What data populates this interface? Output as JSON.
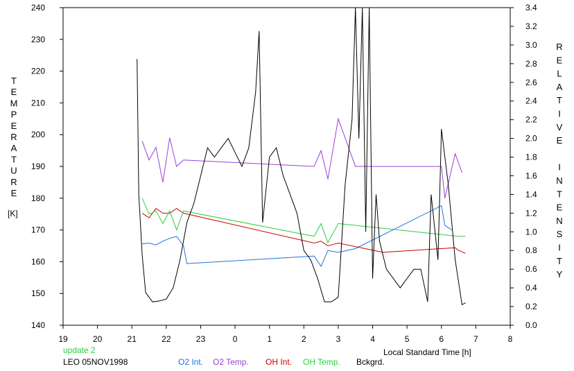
{
  "chart_data": {
    "type": "line",
    "xlabel": "Local Standard Time [h]",
    "ylabel_left": "TEMPERATURE",
    "ylabel_left_unit": "[K]",
    "ylabel_right": "RELATIVE INTENSITY",
    "x_range": [
      19,
      32
    ],
    "x_tick_values": [
      19,
      20,
      21,
      22,
      23,
      24,
      25,
      26,
      27,
      28,
      29,
      30,
      31,
      32
    ],
    "x_tick_labels": [
      "19",
      "20",
      "21",
      "22",
      "23",
      "0",
      "1",
      "2",
      "3",
      "4",
      "5",
      "6",
      "7",
      "8"
    ],
    "y_left_range": [
      140,
      240
    ],
    "y_left_ticks": [
      "140",
      "150",
      "160",
      "170",
      "180",
      "190",
      "200",
      "210",
      "220",
      "230",
      "240"
    ],
    "y_right_range": [
      0.0,
      3.4
    ],
    "y_right_ticks": [
      "0.0",
      "0.2",
      "0.4",
      "0.6",
      "0.8",
      "1.0",
      "1.2",
      "1.4",
      "1.6",
      "1.8",
      "2.0",
      "2.2",
      "2.4",
      "2.6",
      "2.8",
      "3.0",
      "3.2",
      "3.4"
    ],
    "grid": false,
    "series": [
      {
        "name": "O2 Int.",
        "axis": "right",
        "color": "#1a73d9",
        "x": [
          21.3,
          21.5,
          21.7,
          21.9,
          22.1,
          22.3,
          22.5,
          22.6,
          26.3,
          26.5,
          26.7,
          27.0,
          27.5,
          30.0,
          30.1,
          30.3
        ],
        "y": [
          0.87,
          0.88,
          0.86,
          0.9,
          0.93,
          0.95,
          0.85,
          0.66,
          0.74,
          0.63,
          0.8,
          0.78,
          0.82,
          1.28,
          1.07,
          1.02
        ]
      },
      {
        "name": "O2 Temp.",
        "axis": "left",
        "color": "#9b3fd6",
        "x": [
          21.3,
          21.5,
          21.7,
          21.9,
          22.1,
          22.3,
          22.5,
          26.3,
          26.5,
          26.7,
          27.0,
          27.5,
          30.0,
          30.1,
          30.4,
          30.6
        ],
        "y": [
          198,
          192,
          196,
          185,
          199,
          190,
          192,
          190,
          195,
          186,
          205,
          190,
          190,
          180,
          194,
          188
        ]
      },
      {
        "name": "OH Int.",
        "axis": "right",
        "color": "#cc0000",
        "x": [
          21.3,
          21.5,
          21.7,
          21.9,
          22.1,
          22.3,
          22.5,
          26.3,
          26.5,
          26.7,
          27.0,
          28.3,
          30.4,
          30.5,
          30.7
        ],
        "y": [
          1.2,
          1.15,
          1.25,
          1.2,
          1.2,
          1.25,
          1.2,
          0.88,
          0.9,
          0.85,
          0.88,
          0.78,
          0.83,
          0.8,
          0.77
        ]
      },
      {
        "name": "OH Temp.",
        "axis": "left",
        "color": "#2ecc40",
        "x": [
          21.3,
          21.5,
          21.7,
          21.9,
          22.1,
          22.3,
          22.5,
          26.3,
          26.5,
          26.7,
          27.0,
          30.5,
          30.7
        ],
        "y": [
          180,
          175,
          176,
          172,
          176,
          170,
          176,
          168,
          172,
          166,
          172,
          168,
          168
        ]
      },
      {
        "name": "Bckgrd.",
        "axis": "right",
        "color": "#000000",
        "x": [
          21.15,
          21.2,
          21.3,
          21.4,
          21.6,
          21.8,
          22.0,
          22.2,
          22.4,
          22.6,
          22.8,
          23.0,
          23.2,
          23.4,
          23.6,
          23.8,
          24.0,
          24.2,
          24.4,
          24.6,
          24.7,
          24.8,
          25.0,
          25.2,
          25.4,
          25.6,
          25.8,
          26.0,
          26.2,
          26.4,
          26.6,
          26.8,
          27.0,
          27.1,
          27.2,
          27.4,
          27.5,
          27.6,
          27.7,
          27.8,
          27.9,
          28.0,
          28.1,
          28.2,
          28.4,
          28.6,
          28.8,
          29.0,
          29.2,
          29.4,
          29.6,
          29.7,
          29.9,
          30.0,
          30.2,
          30.4,
          30.6,
          30.7
        ],
        "y": [
          2.85,
          1.4,
          0.75,
          0.35,
          0.25,
          0.26,
          0.28,
          0.4,
          0.7,
          1.1,
          1.3,
          1.6,
          1.9,
          1.8,
          1.9,
          2.0,
          1.85,
          1.7,
          1.9,
          2.5,
          3.15,
          1.1,
          1.8,
          1.9,
          1.6,
          1.4,
          1.2,
          0.8,
          0.7,
          0.5,
          0.25,
          0.25,
          0.3,
          0.9,
          1.5,
          2.2,
          3.4,
          2.0,
          3.4,
          1.0,
          3.4,
          0.5,
          1.4,
          0.9,
          0.6,
          0.5,
          0.4,
          0.5,
          0.6,
          0.6,
          0.25,
          1.4,
          0.7,
          2.1,
          1.5,
          0.7,
          0.22,
          0.24
        ]
      }
    ]
  },
  "footer": {
    "update_label": "update 2",
    "station_date": "LEO 05NOV1998",
    "legend": [
      {
        "label": "O2 Int.",
        "color": "#1a73d9"
      },
      {
        "label": "O2 Temp.",
        "color": "#9b3fd6"
      },
      {
        "label": "OH Int.",
        "color": "#cc0000"
      },
      {
        "label": "OH Temp.",
        "color": "#2ecc40"
      },
      {
        "label": "Bckgrd.",
        "color": "#000000"
      }
    ]
  }
}
